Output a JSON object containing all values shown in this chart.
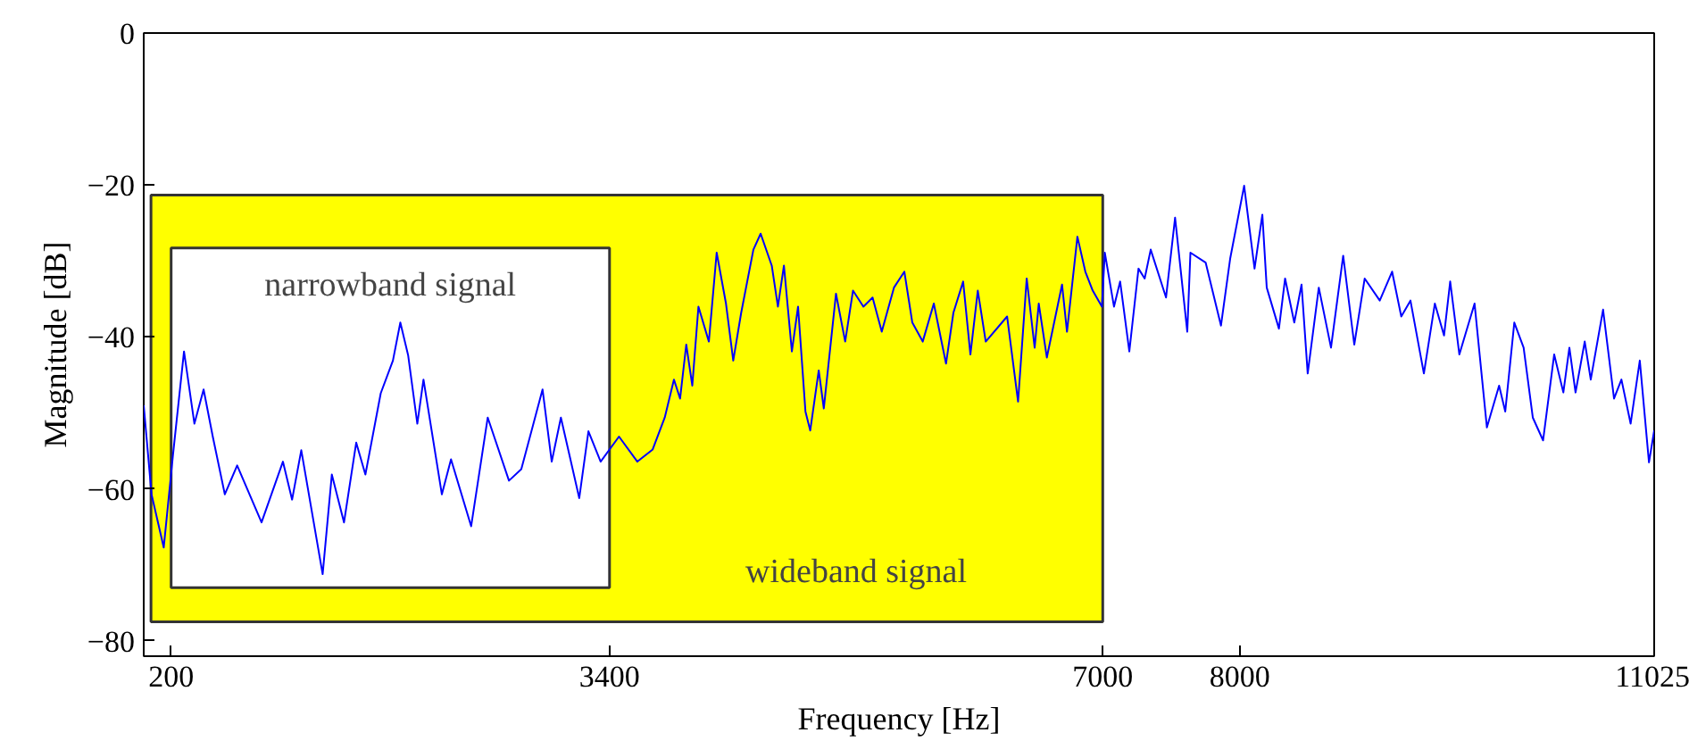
{
  "chart_data": {
    "type": "line",
    "xlabel": "Frequency [Hz]",
    "ylabel": "Magnitude [dB]",
    "xlim": [
      0,
      11025
    ],
    "ylim": [
      -82,
      0
    ],
    "xticks": [
      200,
      3400,
      7000,
      8000,
      11025
    ],
    "yticks": [
      -80,
      -60,
      -40,
      -20,
      0
    ],
    "line_style": "solid",
    "bands": [
      {
        "axis": "x",
        "from": 53,
        "to": 7000,
        "label": "wideband signal",
        "color": "#ffff00"
      },
      {
        "axis": "x",
        "from": 200,
        "to": 3400,
        "label": "narrowband signal",
        "color": "#ffffff"
      }
    ],
    "series": [
      {
        "color": "#0000ff",
        "x": [
          0,
          57,
          146,
          213,
          294,
          370,
          437,
          504,
          592,
          682,
          860,
          1016,
          1083,
          1150,
          1306,
          1373,
          1462,
          1551,
          1618,
          1730,
          1819,
          1873,
          1930,
          1997,
          2042,
          2176,
          2243,
          2390,
          2511,
          2666,
          2756,
          2911,
          2978,
          3045,
          3179,
          3246,
          3335,
          3469,
          3603,
          3715,
          3803,
          3870,
          3915,
          3960,
          4004,
          4049,
          4125,
          4182,
          4250,
          4303,
          4361,
          4450,
          4503,
          4584,
          4629,
          4673,
          4731,
          4776,
          4830,
          4865,
          4927,
          4964,
          5053,
          5120,
          5177,
          5253,
          5320,
          5387,
          5476,
          5552,
          5610,
          5686,
          5767,
          5856,
          5910,
          5981,
          6034,
          6088,
          6146,
          6302,
          6382,
          6445,
          6503,
          6533,
          6592,
          6703,
          6739,
          6815,
          6873,
          6927,
          6994,
          7015,
          7082,
          7127,
          7194,
          7261,
          7306,
          7350,
          7462,
          7528,
          7617,
          7640,
          7751,
          7863,
          7930,
          8032,
          8108,
          8165,
          8197,
          8286,
          8331,
          8398,
          8451,
          8496,
          8577,
          8666,
          8755,
          8836,
          8912,
          9022,
          9112,
          9179,
          9246,
          9344,
          9424,
          9491,
          9536,
          9603,
          9714,
          9804,
          9893,
          9938,
          10004,
          10072,
          10139,
          10214,
          10295,
          10362,
          10406,
          10451,
          10518,
          10562,
          10652,
          10732,
          10786,
          10853,
          10920,
          10987,
          11025
        ],
        "values": [
          -49,
          -60.7,
          -67.7,
          -55.6,
          -41.9,
          -51.4,
          -46.9,
          -53.1,
          -60.7,
          -56.9,
          -64.4,
          -56.4,
          -61.4,
          -54.9,
          -71.2,
          -58.1,
          -64.4,
          -53.9,
          -58.1,
          -47.4,
          -43.1,
          -38.1,
          -42.4,
          -51.4,
          -45.6,
          -60.7,
          -56.1,
          -64.9,
          -50.6,
          -58.9,
          -57.4,
          -46.9,
          -56.4,
          -50.6,
          -61.2,
          -52.4,
          -56.4,
          -53.1,
          -56.4,
          -54.8,
          -50.6,
          -45.6,
          -48.1,
          -41,
          -46.4,
          -36,
          -40.6,
          -28.9,
          -35.6,
          -43.1,
          -36.8,
          -28.5,
          -26.4,
          -30.6,
          -36,
          -30.6,
          -41.9,
          -36,
          -49.8,
          -52.3,
          -44.4,
          -49.4,
          -34.3,
          -40.6,
          -33.9,
          -36,
          -34.8,
          -39.3,
          -33.5,
          -31.4,
          -38.1,
          -40.6,
          -35.6,
          -43.5,
          -36.8,
          -32.7,
          -42.3,
          -33.9,
          -40.6,
          -37.3,
          -48.5,
          -32.3,
          -41.4,
          -35.6,
          -42.7,
          -33.1,
          -39.3,
          -26.8,
          -31.4,
          -33.9,
          -36,
          -28.9,
          -36,
          -32.7,
          -41.9,
          -31,
          -32.3,
          -28.5,
          -34.8,
          -24.3,
          -39.3,
          -28.9,
          -30.2,
          -38.5,
          -29.7,
          -20.1,
          -31,
          -23.9,
          -33.5,
          -38.9,
          -32.3,
          -38.1,
          -33.1,
          -44.8,
          -33.5,
          -41.4,
          -29.3,
          -41,
          -32.3,
          -35.2,
          -31.4,
          -37.3,
          -35.2,
          -44.8,
          -35.6,
          -39.8,
          -32.7,
          -42.3,
          -35.6,
          -51.9,
          -46.4,
          -49.8,
          -38.1,
          -41.4,
          -50.6,
          -53.6,
          -42.3,
          -47.3,
          -41.4,
          -47.3,
          -40.6,
          -45.6,
          -36.4,
          -48.1,
          -45.6,
          -51.4,
          -43.1,
          -56.5,
          -52.3
        ]
      }
    ]
  }
}
